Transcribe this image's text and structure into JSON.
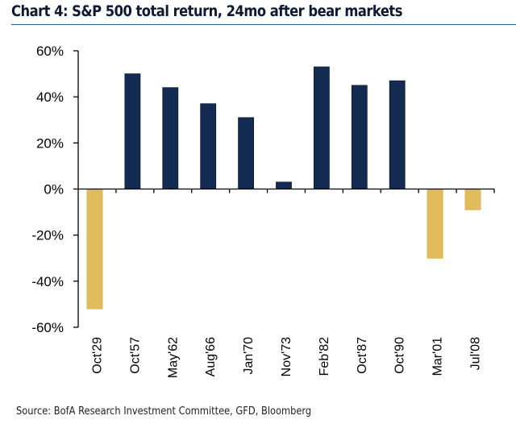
{
  "chart_data": {
    "type": "bar",
    "title": "Chart 4: S&P 500 total return, 24mo after bear markets",
    "xlabel": "",
    "ylabel": "",
    "categories": [
      "Oct'29",
      "Oct'57",
      "May'62",
      "Aug'66",
      "Jan'70",
      "Nov'73",
      "Feb'82",
      "Oct'87",
      "Oct'90",
      "Mar'01",
      "Jul'08"
    ],
    "values": [
      -52,
      50,
      44,
      37,
      31,
      3,
      53,
      45,
      47,
      -30,
      -9
    ],
    "unit": "%",
    "ylim": [
      -60,
      60
    ],
    "yticks": [
      60,
      40,
      20,
      0,
      -20,
      -40,
      -60
    ],
    "ytick_labels": [
      "60%",
      "40%",
      "20%",
      "0%",
      "-20%",
      "-40%",
      "-60%"
    ],
    "grid": false,
    "legend": "none",
    "colors": {
      "positive": "#142c52",
      "negative": "#e0bc5c",
      "negative_edge": "#d9ac3c",
      "axis": "#000000"
    },
    "source": "Source: BofA Research Investment Committee, GFD, Bloomberg"
  }
}
